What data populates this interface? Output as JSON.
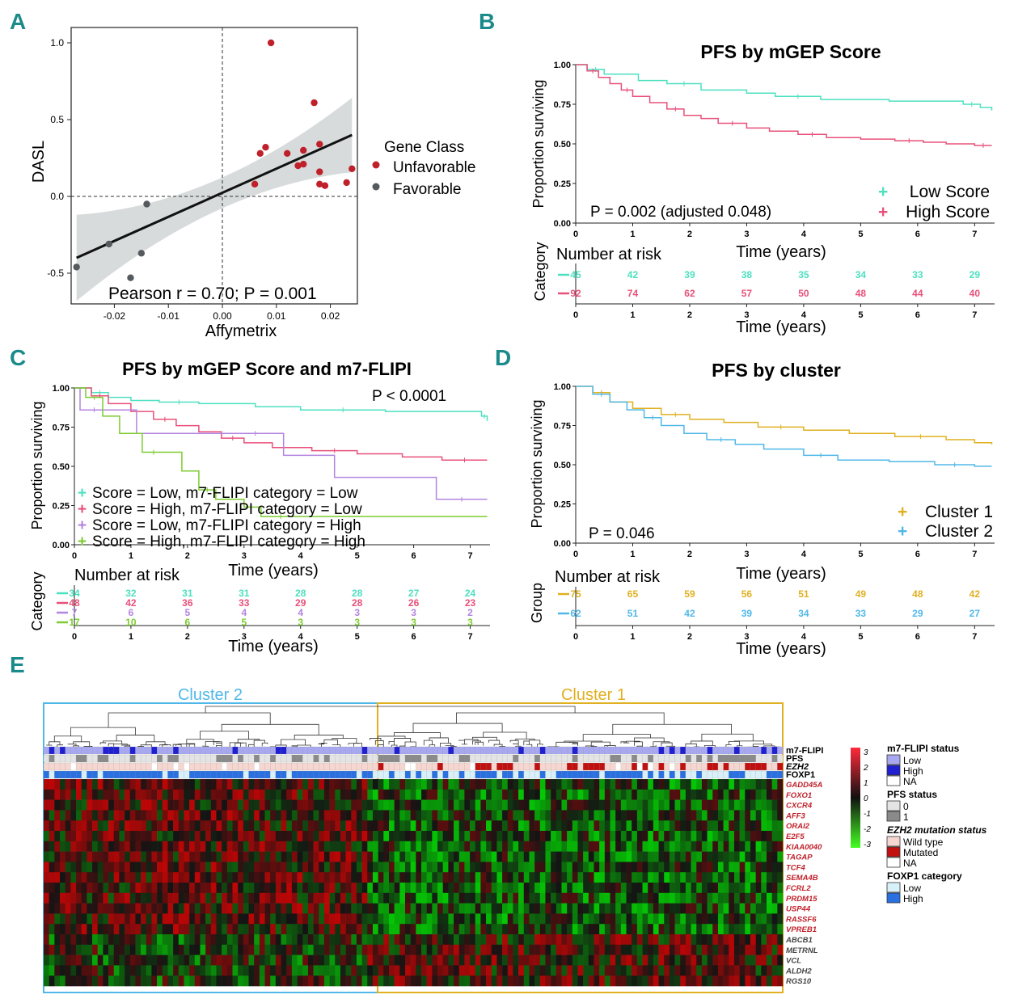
{
  "chart_data": [
    {
      "panel": "A",
      "type": "scatter",
      "xlabel": "Affymetrix",
      "ylabel": "DASL",
      "xlim": [
        -0.028,
        0.025
      ],
      "ylim": [
        -0.7,
        1.1
      ],
      "xticks": [
        "-0.02",
        "-0.01",
        "0.00",
        "0.01",
        "0.02"
      ],
      "xtick_values": [
        -0.02,
        -0.01,
        0.0,
        0.01,
        0.02
      ],
      "yticks": [
        "-0.5",
        "0.0",
        "0.5",
        "1.0"
      ],
      "ytick_values": [
        -0.5,
        0.0,
        0.5,
        1.0
      ],
      "annotation": "Pearson r = 0.70; P = 0.001",
      "legend_title": "Gene Class",
      "legend_position": "right",
      "fit_line": {
        "x": [
          -0.027,
          0.024
        ],
        "y": [
          -0.4,
          0.4
        ]
      },
      "series": [
        {
          "name": "Unfavorable",
          "color": "#c0202a",
          "points": [
            [
              0.009,
              1.0
            ],
            [
              0.017,
              0.61
            ],
            [
              0.007,
              0.28
            ],
            [
              0.008,
              0.32
            ],
            [
              0.012,
              0.28
            ],
            [
              0.015,
              0.3
            ],
            [
              0.014,
              0.2
            ],
            [
              0.015,
              0.21
            ],
            [
              0.018,
              0.34
            ],
            [
              0.018,
              0.16
            ],
            [
              0.006,
              0.08
            ],
            [
              0.018,
              0.08
            ],
            [
              0.019,
              0.07
            ],
            [
              0.023,
              0.09
            ],
            [
              0.024,
              0.18
            ]
          ]
        },
        {
          "name": "Favorable",
          "color": "#555a5e",
          "points": [
            [
              -0.014,
              -0.05
            ],
            [
              -0.021,
              -0.31
            ],
            [
              -0.015,
              -0.37
            ],
            [
              -0.027,
              -0.46
            ],
            [
              -0.017,
              -0.53
            ]
          ]
        }
      ]
    },
    {
      "panel": "B",
      "type": "line",
      "title": "PFS by mGEP Score",
      "xlabel": "Time (years)",
      "ylabel": "Proportion surviving",
      "xticks": [
        "0",
        "1",
        "2",
        "3",
        "4",
        "5",
        "6",
        "7"
      ],
      "yticks": [
        "0.00",
        "0.25",
        "0.50",
        "0.75",
        "1.00"
      ],
      "annotation": "P = 0.002 (adjusted 0.048)",
      "legend_position": "bottom-right",
      "series": [
        {
          "name": "Low Score",
          "color": "#4de0c0",
          "x": [
            0,
            0.2,
            0.5,
            1.1,
            1.6,
            2.2,
            3.0,
            3.5,
            4.3,
            5.5,
            6.8,
            7.1,
            7.3
          ],
          "y": [
            1,
            0.97,
            0.94,
            0.9,
            0.88,
            0.84,
            0.82,
            0.8,
            0.78,
            0.77,
            0.75,
            0.73,
            0.71
          ]
        },
        {
          "name": "High Score",
          "color": "#e8507a",
          "x": [
            0,
            0.2,
            0.4,
            0.6,
            0.8,
            1.0,
            1.3,
            1.6,
            1.9,
            2.2,
            2.5,
            3.0,
            3.4,
            3.9,
            4.4,
            5.0,
            5.6,
            6.1,
            6.5,
            7.0,
            7.3
          ],
          "y": [
            1,
            0.96,
            0.92,
            0.88,
            0.84,
            0.8,
            0.76,
            0.72,
            0.68,
            0.66,
            0.63,
            0.6,
            0.58,
            0.56,
            0.54,
            0.53,
            0.52,
            0.51,
            0.5,
            0.49,
            0.49
          ]
        }
      ],
      "risk_table": {
        "title": "Number at risk",
        "ylabel": "Category",
        "xlabel": "Time (years)",
        "rows": [
          {
            "color": "#4de0c0",
            "values": [
              "45",
              "42",
              "39",
              "38",
              "35",
              "34",
              "33",
              "29"
            ]
          },
          {
            "color": "#e8507a",
            "values": [
              "92",
              "74",
              "62",
              "57",
              "50",
              "48",
              "44",
              "40"
            ]
          }
        ]
      }
    },
    {
      "panel": "C",
      "type": "line",
      "title": "PFS by mGEP Score and m7-FLIPI",
      "xlabel": "Time (years)",
      "ylabel": "Proportion surviving",
      "xticks": [
        "0",
        "1",
        "2",
        "3",
        "4",
        "5",
        "6",
        "7"
      ],
      "yticks": [
        "0.00",
        "0.25",
        "0.50",
        "0.75",
        "1.00"
      ],
      "annotation": "P < 0.0001",
      "legend_position": "bottom-left",
      "series": [
        {
          "name": "Score = Low, m7-FLIPI category = Low",
          "color": "#4de0c0",
          "x": [
            0,
            0.3,
            0.6,
            1.0,
            1.5,
            2.2,
            3.2,
            4.0,
            5.5,
            6.8,
            7.2,
            7.3
          ],
          "y": [
            1,
            0.97,
            0.94,
            0.92,
            0.91,
            0.9,
            0.88,
            0.86,
            0.85,
            0.85,
            0.82,
            0.79
          ]
        },
        {
          "name": "Score = High, m7-FLIPI category = Low",
          "color": "#e8507a",
          "x": [
            0,
            0.3,
            0.6,
            1.0,
            1.4,
            1.8,
            2.2,
            2.6,
            3.0,
            3.5,
            4.2,
            5.0,
            5.8,
            6.5,
            7.3
          ],
          "y": [
            1,
            0.95,
            0.9,
            0.85,
            0.8,
            0.76,
            0.72,
            0.68,
            0.65,
            0.62,
            0.6,
            0.58,
            0.56,
            0.54,
            0.54
          ]
        },
        {
          "name": "Score = Low, m7-FLIPI category = High",
          "color": "#b384e0",
          "x": [
            0,
            0.1,
            0.6,
            1.1,
            2.7,
            3.7,
            4.6,
            6.4,
            7.3
          ],
          "y": [
            1,
            0.86,
            0.86,
            0.71,
            0.71,
            0.57,
            0.43,
            0.29,
            0.29
          ]
        },
        {
          "name": "Score = High, m7-FLIPI category = High",
          "color": "#7ccc30",
          "x": [
            0,
            0.2,
            0.5,
            0.8,
            1.2,
            1.6,
            1.9,
            2.2,
            2.5,
            3.0,
            3.3,
            4.0,
            7.3
          ],
          "y": [
            1,
            0.94,
            0.82,
            0.71,
            0.59,
            0.59,
            0.47,
            0.35,
            0.29,
            0.24,
            0.18,
            0.18,
            0.18
          ]
        }
      ],
      "risk_table": {
        "title": "Number at risk",
        "ylabel": "Category",
        "xlabel": "Time (years)",
        "rows": [
          {
            "color": "#4de0c0",
            "values": [
              "34",
              "32",
              "31",
              "31",
              "28",
              "28",
              "27",
              "24"
            ]
          },
          {
            "color": "#e8507a",
            "values": [
              "48",
              "42",
              "36",
              "33",
              "29",
              "28",
              "26",
              "23"
            ]
          },
          {
            "color": "#b384e0",
            "values": [
              "7",
              "6",
              "5",
              "4",
              "4",
              "3",
              "3",
              "2"
            ]
          },
          {
            "color": "#7ccc30",
            "values": [
              "17",
              "10",
              "6",
              "5",
              "3",
              "3",
              "3",
              "3"
            ]
          }
        ]
      }
    },
    {
      "panel": "D",
      "type": "line",
      "title": "PFS by cluster",
      "xlabel": "Time (years)",
      "ylabel": "Proportion surviving",
      "xticks": [
        "0",
        "1",
        "2",
        "3",
        "4",
        "5",
        "6",
        "7"
      ],
      "yticks": [
        "0.00",
        "0.25",
        "0.50",
        "0.75",
        "1.00"
      ],
      "annotation": "P = 0.046",
      "legend_position": "bottom-right",
      "series": [
        {
          "name": "Cluster 1",
          "color": "#e0b020",
          "x": [
            0,
            0.3,
            0.6,
            1.0,
            1.5,
            2.0,
            2.6,
            3.2,
            4.0,
            4.8,
            5.6,
            6.5,
            7.0,
            7.3
          ],
          "y": [
            1,
            0.96,
            0.9,
            0.86,
            0.82,
            0.79,
            0.77,
            0.74,
            0.72,
            0.7,
            0.68,
            0.66,
            0.64,
            0.63
          ]
        },
        {
          "name": "Cluster 2",
          "color": "#50b8e8",
          "x": [
            0,
            0.3,
            0.6,
            0.9,
            1.2,
            1.5,
            1.9,
            2.3,
            2.8,
            3.3,
            4.0,
            4.6,
            5.5,
            6.3,
            7.0,
            7.3
          ],
          "y": [
            1,
            0.95,
            0.9,
            0.85,
            0.8,
            0.75,
            0.7,
            0.66,
            0.63,
            0.6,
            0.56,
            0.53,
            0.52,
            0.5,
            0.49,
            0.49
          ]
        }
      ],
      "risk_table": {
        "title": "Number at risk",
        "ylabel": "Group",
        "xlabel": "Time (years)",
        "rows": [
          {
            "color": "#e0b020",
            "values": [
              "75",
              "65",
              "59",
              "56",
              "51",
              "49",
              "48",
              "42"
            ]
          },
          {
            "color": "#50b8e8",
            "values": [
              "62",
              "51",
              "42",
              "39",
              "34",
              "33",
              "29",
              "27"
            ]
          }
        ]
      }
    },
    {
      "panel": "E",
      "type": "heatmap",
      "clusters": [
        {
          "label": "Cluster 2",
          "color": "#50b8e8"
        },
        {
          "label": "Cluster 1",
          "color": "#e0b020"
        }
      ],
      "annotation_rows": [
        "m7-FLIPI",
        "PFS",
        "EZH2",
        "FOXP1"
      ],
      "genes_unfavorable": [
        "GADD45A",
        "FOXO1",
        "CXCR4",
        "AFF3",
        "ORAI2",
        "E2F5",
        "KIAA0040",
        "TAGAP",
        "TCF4",
        "SEMA4B",
        "FCRL2",
        "PRDM15",
        "USP44",
        "RASSF6",
        "VPREB1"
      ],
      "genes_favorable": [
        "ABCB1",
        "METRNL",
        "VCL",
        "ALDH2",
        "RGS10"
      ],
      "gene_colors": {
        "unfavorable": "#c0202a",
        "favorable": "#444444"
      },
      "colorbar_ticks": [
        "3",
        "2",
        "1",
        "0",
        "-1",
        "-2",
        "-3"
      ],
      "legends": [
        {
          "title": "m7-FLIPI status",
          "items": [
            {
              "label": "Low",
              "color": "#a8a8f0"
            },
            {
              "label": "High",
              "color": "#2020d0"
            },
            {
              "label": "NA",
              "color": "#ffffff"
            }
          ]
        },
        {
          "title": "PFS status",
          "items": [
            {
              "label": "0",
              "color": "#e4e4e4"
            },
            {
              "label": "1",
              "color": "#8a8a8a"
            }
          ]
        },
        {
          "title": "EZH2 mutation status",
          "items": [
            {
              "label": "Wild type",
              "color": "#f6d6d0"
            },
            {
              "label": "Mutated",
              "color": "#c01010"
            },
            {
              "label": "NA",
              "color": "#ffffff"
            }
          ]
        },
        {
          "title": "FOXP1 category",
          "items": [
            {
              "label": "Low",
              "color": "#d8f0f8"
            },
            {
              "label": "High",
              "color": "#2a70e0"
            }
          ]
        }
      ]
    }
  ],
  "panel_labels": [
    "A",
    "B",
    "C",
    "D",
    "E"
  ]
}
